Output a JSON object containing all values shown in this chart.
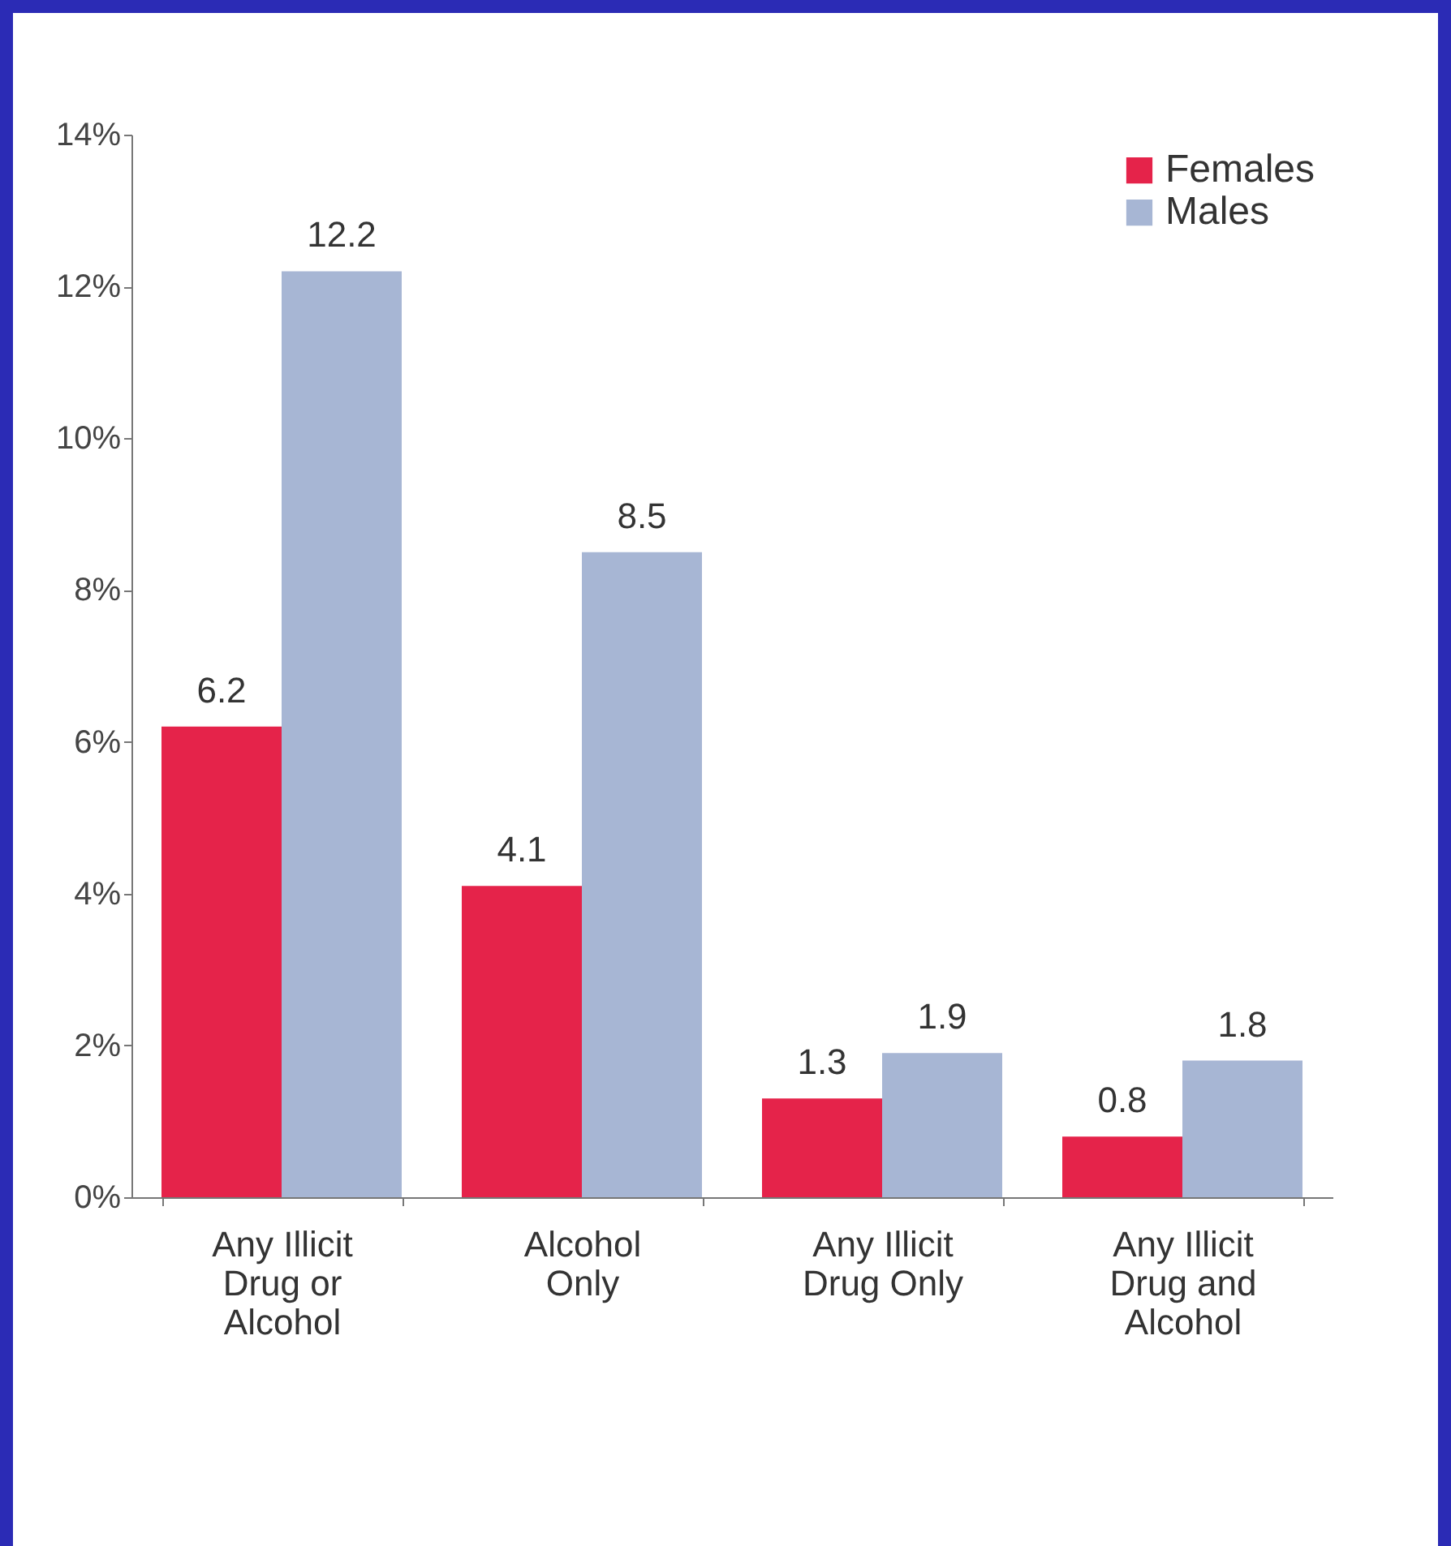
{
  "chart_data": {
    "type": "bar",
    "categories": [
      "Any Illicit Drug or Alcohol",
      "Alcohol Only",
      "Any Illicit Drug Only",
      "Any Illicit Drug and Alcohol"
    ],
    "series": [
      {
        "name": "Females",
        "color": "#e5234a",
        "values": [
          6.2,
          4.1,
          1.3,
          0.8
        ]
      },
      {
        "name": "Males",
        "color": "#a7b6d4",
        "values": [
          12.2,
          8.5,
          1.9,
          1.8
        ]
      }
    ],
    "ylim": [
      0,
      14
    ],
    "yticks": [
      {
        "value": 0,
        "label": "0%"
      },
      {
        "value": 2,
        "label": "2%"
      },
      {
        "value": 4,
        "label": "4%"
      },
      {
        "value": 6,
        "label": "6%"
      },
      {
        "value": 8,
        "label": "8%"
      },
      {
        "value": 10,
        "label": "10%"
      },
      {
        "value": 12,
        "label": "12%"
      },
      {
        "value": 14,
        "label": "14%"
      }
    ],
    "grid": false,
    "legend": "top right",
    "data_labels": true
  }
}
